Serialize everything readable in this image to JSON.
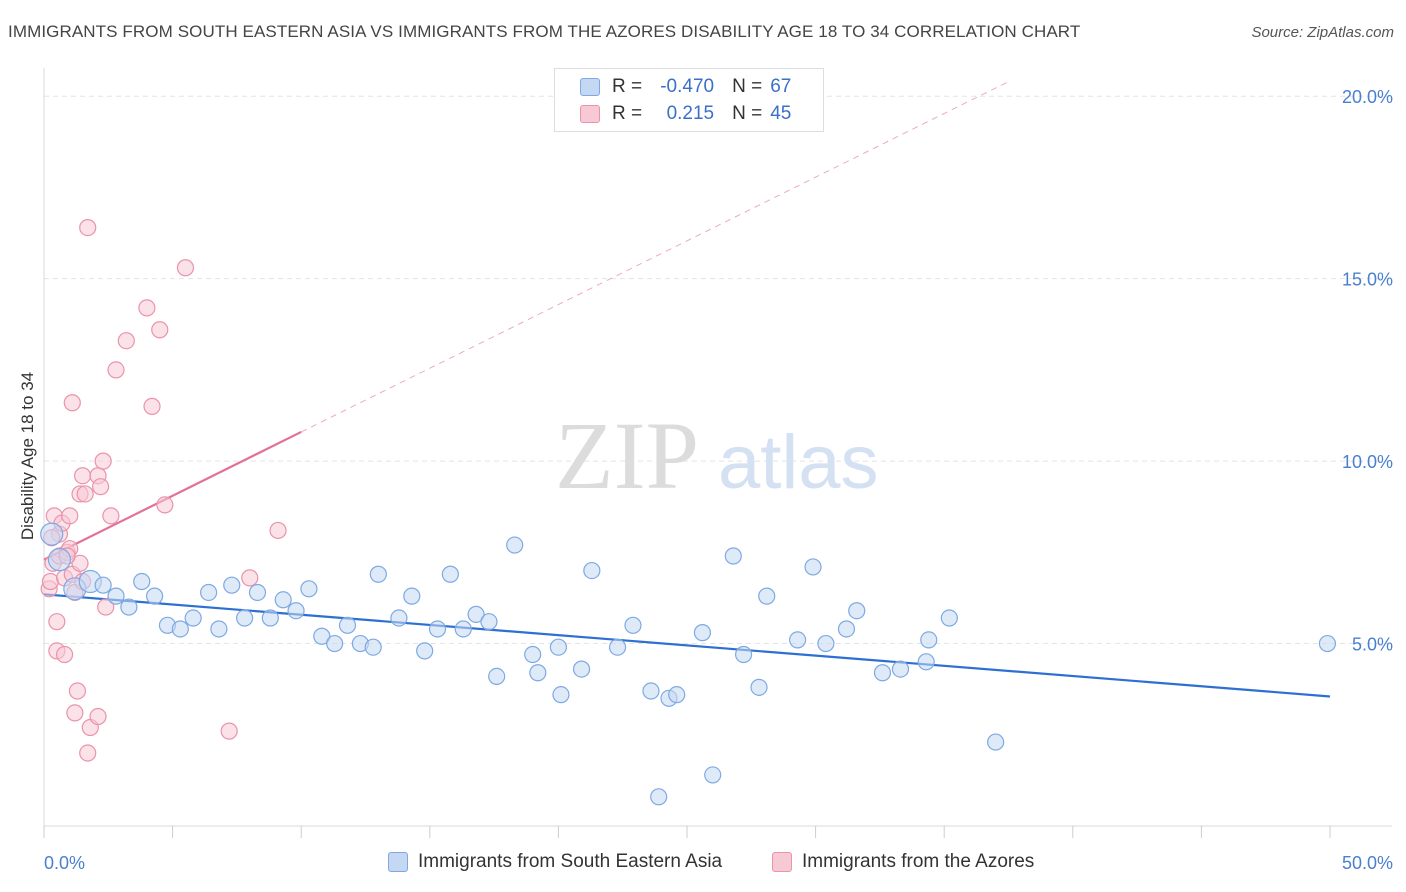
{
  "header": {
    "title": "IMMIGRANTS FROM SOUTH EASTERN ASIA VS IMMIGRANTS FROM THE AZORES DISABILITY AGE 18 TO 34 CORRELATION CHART",
    "source": "Source: ZipAtlas.com"
  },
  "legend": {
    "r_label": "R =",
    "n_label": "N =",
    "series_a": {
      "r": "-0.470",
      "n": "67"
    },
    "series_b": {
      "r": "0.215",
      "n": "45"
    }
  },
  "bottom_legend": {
    "series_a": "Immigrants from South Eastern Asia",
    "series_b": "Immigrants from the Azores"
  },
  "watermark": {
    "zip": "ZIP",
    "atlas": "atlas"
  },
  "colors": {
    "series_a_fill": "#c5d8f3",
    "series_a_stroke": "#7ea9e3",
    "series_a_line": "#2e6fd2",
    "series_b_fill": "#f7c9d5",
    "series_b_stroke": "#ea93ab",
    "series_b_line": "#e3709a",
    "axis_tick_text": "#4a7fd0",
    "grid": "#e4e4e4"
  },
  "chart_data": {
    "type": "scatter",
    "title": "IMMIGRANTS FROM SOUTH EASTERN ASIA VS IMMIGRANTS FROM THE AZORES DISABILITY AGE 18 TO 34 CORRELATION CHART",
    "xlabel": "",
    "ylabel": "Disability Age 18 to 34",
    "xlim": [
      0,
      50
    ],
    "ylim": [
      0,
      20
    ],
    "x_tick_labels": [
      "0.0%",
      "50.0%"
    ],
    "y_ticks": [
      5,
      10,
      15,
      20
    ],
    "y_tick_labels": [
      "5.0%",
      "10.0%",
      "15.0%",
      "20.0%"
    ],
    "grid": true,
    "legend_position": "top-center",
    "series": [
      {
        "name": "Immigrants from South Eastern Asia",
        "r": -0.47,
        "n": 67,
        "trend": {
          "x": [
            0,
            50
          ],
          "y": [
            6.35,
            3.55
          ],
          "style": "solid"
        },
        "points": [
          [
            0.3,
            8.0
          ],
          [
            0.6,
            7.3
          ],
          [
            1.2,
            6.5
          ],
          [
            1.8,
            6.7
          ],
          [
            2.3,
            6.6
          ],
          [
            2.8,
            6.3
          ],
          [
            3.3,
            6.0
          ],
          [
            3.8,
            6.7
          ],
          [
            4.3,
            6.3
          ],
          [
            4.8,
            5.5
          ],
          [
            5.3,
            5.4
          ],
          [
            5.8,
            5.7
          ],
          [
            6.4,
            6.4
          ],
          [
            6.8,
            5.4
          ],
          [
            7.3,
            6.6
          ],
          [
            7.8,
            5.7
          ],
          [
            8.3,
            6.4
          ],
          [
            8.8,
            5.7
          ],
          [
            9.3,
            6.2
          ],
          [
            9.8,
            5.9
          ],
          [
            10.3,
            6.5
          ],
          [
            10.8,
            5.2
          ],
          [
            11.3,
            5.0
          ],
          [
            11.8,
            5.5
          ],
          [
            12.3,
            5.0
          ],
          [
            12.8,
            4.9
          ],
          [
            13.0,
            6.9
          ],
          [
            13.8,
            5.7
          ],
          [
            14.3,
            6.3
          ],
          [
            14.8,
            4.8
          ],
          [
            15.3,
            5.4
          ],
          [
            15.8,
            6.9
          ],
          [
            16.3,
            5.4
          ],
          [
            16.8,
            5.8
          ],
          [
            17.3,
            5.6
          ],
          [
            17.6,
            4.1
          ],
          [
            18.3,
            7.7
          ],
          [
            19.0,
            4.7
          ],
          [
            19.2,
            4.2
          ],
          [
            20.0,
            4.9
          ],
          [
            20.1,
            3.6
          ],
          [
            20.9,
            4.3
          ],
          [
            21.3,
            7.0
          ],
          [
            22.3,
            4.9
          ],
          [
            22.9,
            5.5
          ],
          [
            23.6,
            3.7
          ],
          [
            23.9,
            0.8
          ],
          [
            24.3,
            3.5
          ],
          [
            24.6,
            3.6
          ],
          [
            25.6,
            5.3
          ],
          [
            26.0,
            1.4
          ],
          [
            26.8,
            7.4
          ],
          [
            27.2,
            4.7
          ],
          [
            27.8,
            3.8
          ],
          [
            28.1,
            6.3
          ],
          [
            29.3,
            5.1
          ],
          [
            29.9,
            7.1
          ],
          [
            30.4,
            5.0
          ],
          [
            31.2,
            5.4
          ],
          [
            31.6,
            5.9
          ],
          [
            32.6,
            4.2
          ],
          [
            33.3,
            4.3
          ],
          [
            34.3,
            4.5
          ],
          [
            34.4,
            5.1
          ],
          [
            35.2,
            5.7
          ],
          [
            37.0,
            2.3
          ],
          [
            49.9,
            5.0
          ]
        ]
      },
      {
        "name": "Immigrants from the Azores",
        "r": 0.215,
        "n": 45,
        "trend": {
          "x": [
            0,
            10
          ],
          "y": [
            7.3,
            10.8
          ],
          "style": "solid",
          "extended_to": [
            37.5,
            20.4
          ],
          "extension_style": "dashed"
        },
        "points": [
          [
            0.2,
            6.5
          ],
          [
            0.25,
            6.7
          ],
          [
            0.35,
            7.2
          ],
          [
            0.4,
            8.5
          ],
          [
            0.5,
            5.6
          ],
          [
            0.5,
            4.8
          ],
          [
            0.6,
            7.4
          ],
          [
            0.6,
            8.0
          ],
          [
            0.7,
            8.3
          ],
          [
            0.8,
            4.7
          ],
          [
            0.8,
            6.8
          ],
          [
            0.9,
            7.5
          ],
          [
            1.0,
            8.5
          ],
          [
            1.0,
            7.6
          ],
          [
            1.1,
            6.9
          ],
          [
            1.1,
            11.6
          ],
          [
            1.2,
            6.4
          ],
          [
            1.2,
            3.1
          ],
          [
            1.3,
            3.7
          ],
          [
            1.4,
            7.2
          ],
          [
            1.4,
            9.1
          ],
          [
            1.5,
            9.6
          ],
          [
            1.6,
            9.1
          ],
          [
            1.7,
            2.0
          ],
          [
            1.7,
            16.4
          ],
          [
            1.8,
            2.7
          ],
          [
            2.1,
            3.0
          ],
          [
            2.1,
            9.6
          ],
          [
            2.2,
            9.3
          ],
          [
            2.3,
            10.0
          ],
          [
            2.4,
            6.0
          ],
          [
            2.6,
            8.5
          ],
          [
            2.8,
            12.5
          ],
          [
            3.2,
            13.3
          ],
          [
            4.0,
            14.2
          ],
          [
            4.2,
            11.5
          ],
          [
            4.5,
            13.6
          ],
          [
            4.7,
            8.8
          ],
          [
            5.5,
            15.3
          ],
          [
            7.2,
            2.6
          ],
          [
            8.0,
            6.8
          ],
          [
            9.1,
            8.1
          ],
          [
            0.3,
            7.9
          ],
          [
            0.9,
            7.4
          ],
          [
            1.5,
            6.7
          ]
        ]
      }
    ]
  }
}
